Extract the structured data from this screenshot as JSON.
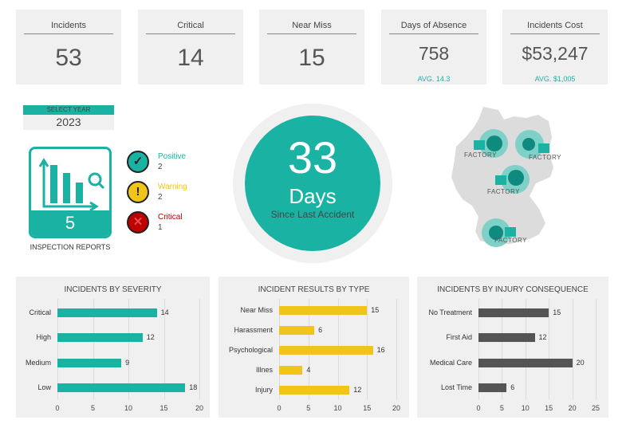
{
  "kpis": [
    {
      "label": "Incidents",
      "value": "53"
    },
    {
      "label": "Critical",
      "value": "14"
    },
    {
      "label": "Near Miss",
      "value": "15"
    },
    {
      "label": "Days of Absence",
      "value": "758",
      "avg": "AVG. 14.3"
    },
    {
      "label": "Incidents Cost",
      "value": "$53,247",
      "avg": "AVG. $1,005"
    }
  ],
  "year": {
    "label": "SELECT YEAR",
    "value": "2023"
  },
  "inspection": {
    "count": "5",
    "label": "INSPECTION REPORTS",
    "icon": "chart-magnifier-icon"
  },
  "statuses": [
    {
      "label": "Positive",
      "count": "2",
      "color": "#1ab3a3",
      "icon": "check-icon"
    },
    {
      "label": "Warning",
      "count": "2",
      "color": "#f0c419",
      "icon": "exclamation-icon"
    },
    {
      "label": "Critical",
      "count": "1",
      "color": "#c00000",
      "icon": "x-icon"
    }
  ],
  "since": {
    "number": "33",
    "unit": "Days",
    "caption": "Since Last Accident"
  },
  "map": {
    "factory_label": "FACTORY",
    "factories": 4
  },
  "colors": {
    "accent": "#1ab3a3",
    "yellow": "#f0c419",
    "gray": "#555555"
  },
  "chart_data": [
    {
      "type": "bar",
      "orientation": "horizontal",
      "title": "INCIDENTS BY SEVERITY",
      "categories": [
        "Critical",
        "High",
        "Medium",
        "Low"
      ],
      "values": [
        14,
        12,
        9,
        18
      ],
      "xlim": [
        0,
        20
      ],
      "ticks": [
        0,
        5,
        10,
        15,
        20
      ],
      "grid": true,
      "color": "#1ab3a3"
    },
    {
      "type": "bar",
      "orientation": "horizontal",
      "title": "INCIDENT RESULTS BY TYPE",
      "categories": [
        "Near Miss",
        "Harassment",
        "Psychological",
        "Illnes",
        "Injury"
      ],
      "values": [
        15,
        6,
        16,
        4,
        12
      ],
      "xlim": [
        0,
        20
      ],
      "ticks": [
        0,
        5,
        10,
        15,
        20
      ],
      "grid": true,
      "color": "#f0c419"
    },
    {
      "type": "bar",
      "orientation": "horizontal",
      "title": "INCIDENTS BY INJURY CONSEQUENCE",
      "categories": [
        "No Treatment",
        "First Aid",
        "Medical Care",
        "Lost Time"
      ],
      "values": [
        15,
        12,
        20,
        6
      ],
      "xlim": [
        0,
        25
      ],
      "ticks": [
        0,
        5,
        10,
        15,
        20,
        25
      ],
      "grid": true,
      "color": "#555555"
    }
  ]
}
